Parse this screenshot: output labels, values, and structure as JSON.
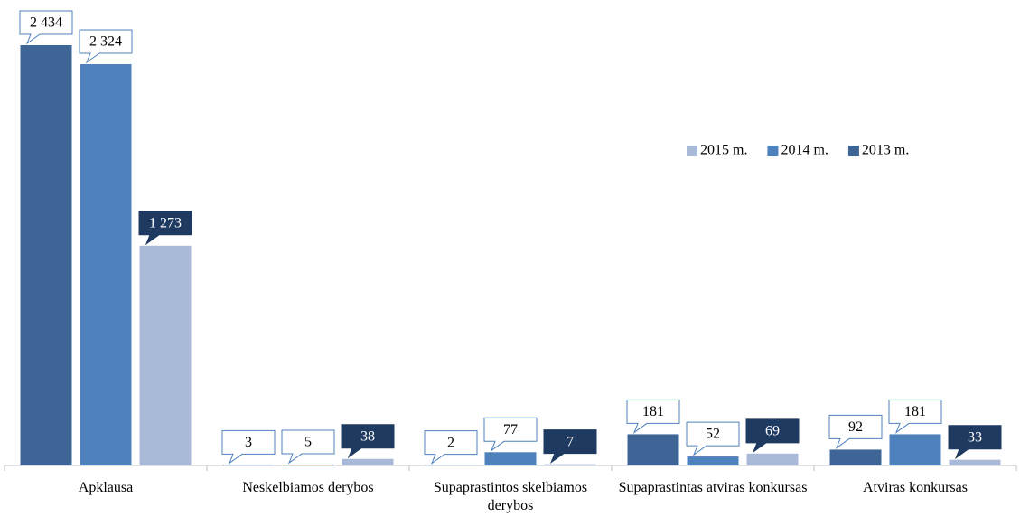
{
  "chart_data": {
    "type": "bar",
    "categories": [
      "Apklausa",
      "Neskelbiamos derybos",
      "Supaprastintos skelbiamos derybos",
      "Supaprastintas atviras konkursas",
      "Atviras konkursas"
    ],
    "series": [
      {
        "name": "2013 m.",
        "color": "#3f6597",
        "values": [
          2434,
          3,
          2,
          181,
          92
        ],
        "value_labels": [
          "2 434",
          "3",
          "2",
          "181",
          "92"
        ]
      },
      {
        "name": "2014 m.",
        "color": "#4f81bd",
        "values": [
          2324,
          5,
          77,
          52,
          181
        ],
        "value_labels": [
          "2 324",
          "5",
          "77",
          "52",
          "181"
        ]
      },
      {
        "name": "2015 m.",
        "color": "#a9b9d8",
        "values": [
          1273,
          38,
          7,
          69,
          33
        ],
        "value_labels": [
          "1 273",
          "38",
          "7",
          "69",
          "33"
        ]
      }
    ],
    "legend": "upper right"
  }
}
